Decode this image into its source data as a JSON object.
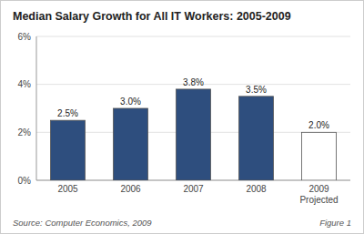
{
  "chart_data": {
    "type": "bar",
    "title": "Median Salary Growth for All IT Workers: 2005-2009",
    "categories": [
      "2005",
      "2006",
      "2007",
      "2008",
      "2009\nProjected"
    ],
    "values": [
      2.5,
      3.0,
      3.8,
      3.5,
      2.0
    ],
    "value_labels": [
      "2.5%",
      "3.0%",
      "3.8%",
      "3.5%",
      "2.0%"
    ],
    "colors": [
      "#2E4E7E",
      "#2E4E7E",
      "#2E4E7E",
      "#2E4E7E",
      "#FFFFFF"
    ],
    "ylim": [
      0,
      6
    ],
    "yticks": [
      {
        "value": 0,
        "label": "0%"
      },
      {
        "value": 2,
        "label": "2%"
      },
      {
        "value": 4,
        "label": "4%"
      },
      {
        "value": 6,
        "label": "6%"
      }
    ],
    "grid": true,
    "annotations": [
      "Source: Computer Economics, 2009",
      "Figure 1"
    ]
  }
}
